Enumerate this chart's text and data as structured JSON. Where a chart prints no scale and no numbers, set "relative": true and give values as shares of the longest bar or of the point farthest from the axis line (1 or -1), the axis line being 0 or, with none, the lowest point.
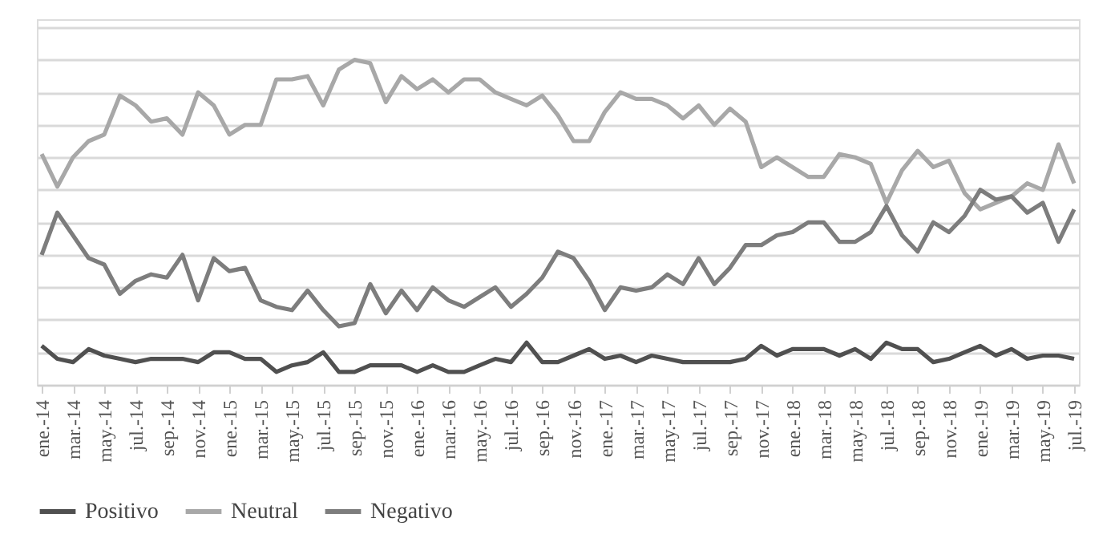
{
  "chart_data": {
    "type": "line",
    "relative": true,
    "grid": "y",
    "legend": "bottom",
    "line_style": "solid",
    "marker": "none",
    "categories": [
      "ene.-14",
      null,
      "mar.-14",
      null,
      "may.-14",
      null,
      "jul.-14",
      null,
      "sep.-14",
      null,
      "nov.-14",
      null,
      "ene.-15",
      null,
      "mar.-15",
      null,
      "may.-15",
      null,
      "jul.-15",
      null,
      "sep.-15",
      null,
      "nov.-15",
      null,
      "ene.-16",
      null,
      "mar.-16",
      null,
      "may.-16",
      null,
      "jul.-16",
      null,
      "sep.-16",
      null,
      "nov.-16",
      null,
      "ene.-17",
      null,
      "mar.-17",
      null,
      "may.-17",
      null,
      "jul.-17",
      null,
      "sep.-17",
      null,
      "nov.-17",
      null,
      "ene.-18",
      null,
      "mar.-18",
      null,
      "may.-18",
      null,
      "jul.-18",
      null,
      "sep.-18",
      null,
      "nov.-18",
      null,
      "ene.-19",
      null,
      "mar.-19",
      null,
      "may.-19",
      null,
      "jul.-19"
    ],
    "series": [
      {
        "name": "Positivo",
        "color": "#505050",
        "values": [
          0.12,
          0.08,
          0.07,
          0.11,
          0.09,
          0.08,
          0.07,
          0.08,
          0.08,
          0.08,
          0.07,
          0.1,
          0.1,
          0.08,
          0.08,
          0.04,
          0.06,
          0.07,
          0.1,
          0.04,
          0.04,
          0.06,
          0.06,
          0.06,
          0.04,
          0.06,
          0.04,
          0.04,
          0.06,
          0.08,
          0.07,
          0.13,
          0.07,
          0.07,
          0.09,
          0.11,
          0.08,
          0.09,
          0.07,
          0.09,
          0.08,
          0.07,
          0.07,
          0.07,
          0.07,
          0.08,
          0.12,
          0.09,
          0.11,
          0.11,
          0.11,
          0.09,
          0.11,
          0.08,
          0.13,
          0.11,
          0.11,
          0.07,
          0.08,
          0.1,
          0.12,
          0.09,
          0.11,
          0.08,
          0.09,
          0.09,
          0.08
        ]
      },
      {
        "name": "Neutral",
        "color": "#a8a8a8",
        "values": [
          0.71,
          0.61,
          0.7,
          0.75,
          0.77,
          0.89,
          0.86,
          0.81,
          0.82,
          0.77,
          0.9,
          0.86,
          0.77,
          0.8,
          0.8,
          0.94,
          0.94,
          0.95,
          0.86,
          0.97,
          1.0,
          0.99,
          0.87,
          0.95,
          0.91,
          0.94,
          0.9,
          0.94,
          0.94,
          0.9,
          0.88,
          0.86,
          0.89,
          0.83,
          0.75,
          0.75,
          0.84,
          0.9,
          0.88,
          0.88,
          0.86,
          0.82,
          0.86,
          0.8,
          0.85,
          0.81,
          0.67,
          0.7,
          0.67,
          0.64,
          0.64,
          0.71,
          0.7,
          0.68,
          0.56,
          0.66,
          0.72,
          0.67,
          0.69,
          0.59,
          0.54,
          0.56,
          0.58,
          0.62,
          0.6,
          0.74,
          0.62
        ]
      },
      {
        "name": "Negativo",
        "color": "#7d7d7d",
        "values": [
          0.4,
          0.53,
          0.46,
          0.39,
          0.37,
          0.28,
          0.32,
          0.34,
          0.33,
          0.4,
          0.26,
          0.39,
          0.35,
          0.36,
          0.26,
          0.24,
          0.23,
          0.29,
          0.23,
          0.18,
          0.19,
          0.31,
          0.22,
          0.29,
          0.23,
          0.3,
          0.26,
          0.24,
          0.27,
          0.3,
          0.24,
          0.28,
          0.33,
          0.41,
          0.39,
          0.32,
          0.23,
          0.3,
          0.29,
          0.3,
          0.34,
          0.31,
          0.39,
          0.31,
          0.36,
          0.43,
          0.43,
          0.46,
          0.47,
          0.5,
          0.5,
          0.44,
          0.44,
          0.47,
          0.55,
          0.46,
          0.41,
          0.5,
          0.47,
          0.52,
          0.6,
          0.57,
          0.58,
          0.53,
          0.56,
          0.44,
          0.54
        ]
      }
    ]
  }
}
